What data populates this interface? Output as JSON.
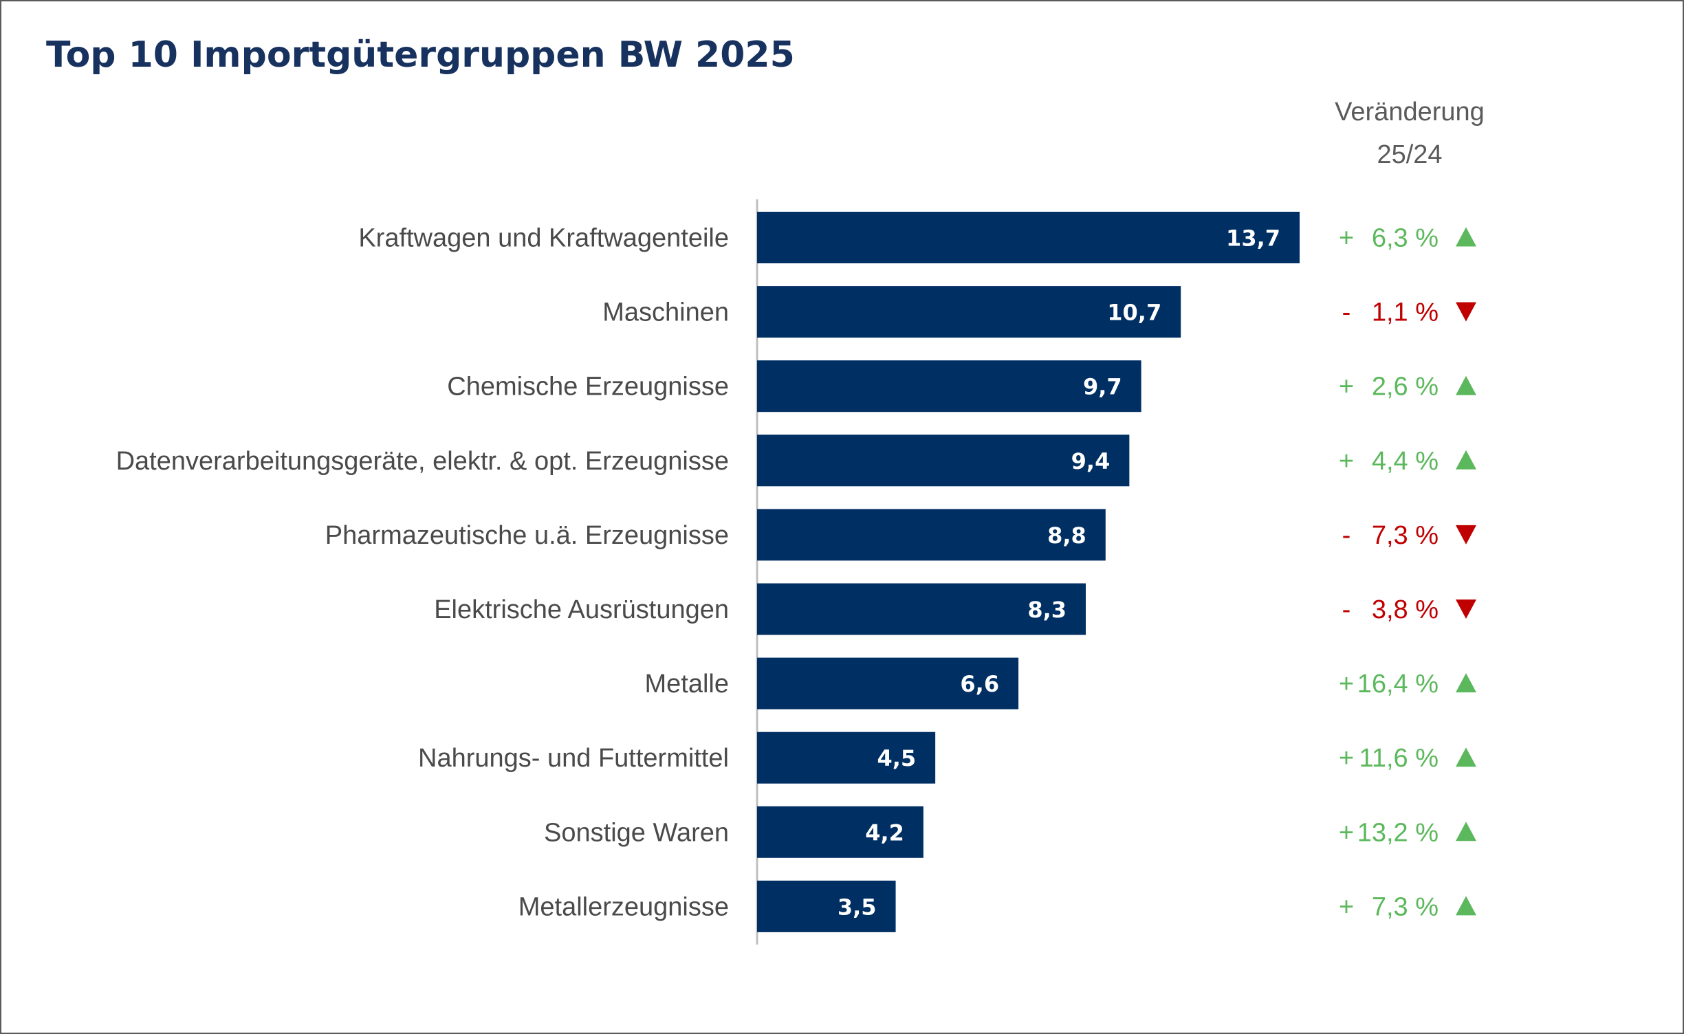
{
  "title": "Top 10 Importgütergruppen BW 2025",
  "change_header": {
    "line1": "Veränderung",
    "line2": "25/24"
  },
  "colors": {
    "bar": "#002f63",
    "title": "#17325e",
    "positive": "#5cb85c",
    "negative": "#c00000",
    "axis": "#bfbfbf"
  },
  "chart_data": {
    "type": "bar",
    "orientation": "horizontal",
    "categories": [
      "Kraftwagen und Kraftwagenteile",
      "Maschinen",
      "Chemische Erzeugnisse",
      "Datenverarbeitungsgeräte, elektr. & opt. Erzeugnisse",
      "Pharmazeutische u.ä. Erzeugnisse",
      "Elektrische Ausrüstungen",
      "Metalle",
      "Nahrungs- und Futtermittel",
      "Sonstige Waren",
      "Metallerzeugnisse"
    ],
    "values": [
      13.7,
      10.7,
      9.7,
      9.4,
      8.8,
      8.3,
      6.6,
      4.5,
      4.2,
      3.5
    ],
    "value_labels": [
      "13,7",
      "10,7",
      "9,7",
      "9,4",
      "8,8",
      "8,3",
      "6,6",
      "4,5",
      "4,2",
      "3,5"
    ],
    "changes": [
      {
        "sign": "+",
        "text": "6,3 %",
        "direction": "up"
      },
      {
        "sign": "-",
        "text": "1,1 %",
        "direction": "down"
      },
      {
        "sign": "+",
        "text": "2,6 %",
        "direction": "up"
      },
      {
        "sign": "+",
        "text": "4,4 %",
        "direction": "up"
      },
      {
        "sign": "-",
        "text": "7,3 %",
        "direction": "down"
      },
      {
        "sign": "-",
        "text": "3,8 %",
        "direction": "down"
      },
      {
        "sign": "+",
        "text": "16,4 %",
        "direction": "up"
      },
      {
        "sign": "+",
        "text": "11,6 %",
        "direction": "up"
      },
      {
        "sign": "+",
        "text": "13,2 %",
        "direction": "up"
      },
      {
        "sign": "+",
        "text": "7,3 %",
        "direction": "up"
      }
    ],
    "change_values": [
      6.3,
      -1.1,
      2.6,
      4.4,
      -7.3,
      -3.8,
      16.4,
      11.6,
      13.2,
      7.3
    ],
    "xlim": [
      0,
      13.7
    ],
    "grid": false,
    "legend": "none"
  }
}
